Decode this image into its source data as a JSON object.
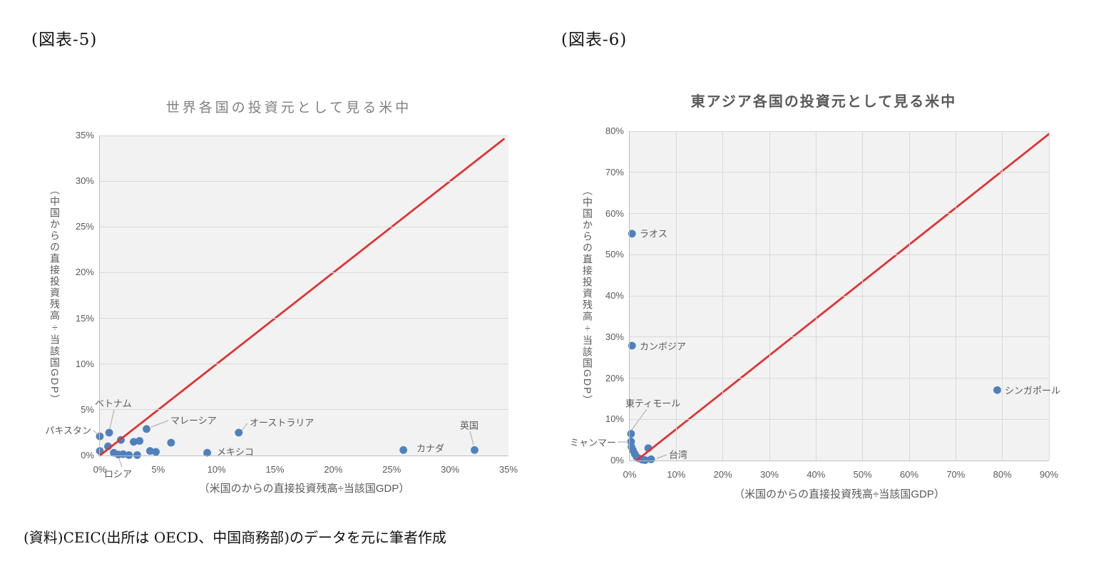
{
  "figures": [
    {
      "tag": "(図表-5)"
    },
    {
      "tag": "(図表-6)"
    }
  ],
  "source_note": "(資料)CEIC(出所は OECD、中国商務部)のデータを元に筆者作成",
  "colors": {
    "plot_background": "#f2f2f2",
    "gridline": "#d9d9d9",
    "axis_line": "#bfbfbf",
    "tick_text": "#595959",
    "point_blue": "#4f81bd",
    "reference_red": "#e03232",
    "connector_gray": "#a6a6a6"
  },
  "chart_data": [
    {
      "id": "world",
      "type": "scatter",
      "title": "世界各国の投資元として見る米中",
      "xlabel": "（米国のからの直接投資残高÷当該国GDP）",
      "ylabel": "（中国からの直接投資残高÷当該国GDP）",
      "xlim": [
        0,
        35
      ],
      "ylim": [
        0,
        35
      ],
      "x_tick_step": 5,
      "y_tick_step": 5,
      "x_ticks": [
        "0%",
        "5%",
        "10%",
        "15%",
        "20%",
        "25%",
        "30%",
        "35%"
      ],
      "y_ticks": [
        "0%",
        "5%",
        "10%",
        "15%",
        "20%",
        "25%",
        "30%",
        "35%"
      ],
      "grid": "horizontal-only",
      "legend": "none",
      "point_color": "#4f81bd",
      "reference_line": {
        "color": "#e03232",
        "from": [
          0,
          0
        ],
        "to": [
          34.6,
          34.6
        ]
      },
      "points": [
        {
          "x": 0.0,
          "y": 2.1,
          "label": "パキスタン"
        },
        {
          "x": 0.8,
          "y": 2.5,
          "label": "ベトナム"
        },
        {
          "x": 0.0,
          "y": 0.5
        },
        {
          "x": 0.7,
          "y": 1.0
        },
        {
          "x": 1.8,
          "y": 1.7
        },
        {
          "x": 2.9,
          "y": 1.5
        },
        {
          "x": 3.4,
          "y": 1.6
        },
        {
          "x": 4.0,
          "y": 2.9,
          "label": "マレーシア"
        },
        {
          "x": 1.2,
          "y": 0.3
        },
        {
          "x": 1.6,
          "y": 0.1,
          "label": "ロシア"
        },
        {
          "x": 2.0,
          "y": 0.15
        },
        {
          "x": 2.5,
          "y": 0.05
        },
        {
          "x": 3.2,
          "y": 0.05
        },
        {
          "x": 4.3,
          "y": 0.5
        },
        {
          "x": 4.8,
          "y": 0.4
        },
        {
          "x": 6.1,
          "y": 1.4
        },
        {
          "x": 9.2,
          "y": 0.3,
          "label": "メキシコ"
        },
        {
          "x": 11.9,
          "y": 2.5,
          "label": "オーストラリア"
        },
        {
          "x": 26.0,
          "y": 0.6,
          "label": "カナダ"
        },
        {
          "x": 32.1,
          "y": 0.6,
          "label": "英国"
        }
      ]
    },
    {
      "id": "east",
      "type": "scatter",
      "title": "東アジア各国の投資元として見る米中",
      "xlabel": "（米国のからの直接投資残高÷当該国GDP）",
      "ylabel": "（中国からの直接投資残高÷当該国GDP）",
      "xlim": [
        0,
        90
      ],
      "ylim": [
        0,
        80
      ],
      "x_tick_step": 10,
      "y_tick_step": 10,
      "x_ticks": [
        "0%",
        "10%",
        "20%",
        "30%",
        "40%",
        "50%",
        "60%",
        "70%",
        "80%",
        "90%"
      ],
      "y_ticks": [
        "0%",
        "10%",
        "20%",
        "30%",
        "40%",
        "50%",
        "60%",
        "70%",
        "80%"
      ],
      "grid": "both",
      "legend": "none",
      "point_color": "#4f81bd",
      "reference_line": {
        "color": "#e03232",
        "from": [
          1.5,
          0
        ],
        "to": [
          90,
          79.3
        ]
      },
      "points": [
        {
          "x": 0.5,
          "y": 55.1,
          "label": "ラオス"
        },
        {
          "x": 0.5,
          "y": 27.9,
          "label": "カンボジア"
        },
        {
          "x": 0.3,
          "y": 6.5,
          "label": "東ティモール"
        },
        {
          "x": 0.3,
          "y": 4.6,
          "label": "ミャンマー"
        },
        {
          "x": 0.4,
          "y": 3.3
        },
        {
          "x": 0.7,
          "y": 2.5
        },
        {
          "x": 1.1,
          "y": 1.6
        },
        {
          "x": 1.5,
          "y": 0.9
        },
        {
          "x": 2.0,
          "y": 0.5
        },
        {
          "x": 2.7,
          "y": 0.2
        },
        {
          "x": 4.0,
          "y": 3.0
        },
        {
          "x": 3.3,
          "y": 0.1
        },
        {
          "x": 4.6,
          "y": 0.3,
          "label": "台湾"
        },
        {
          "x": 78.9,
          "y": 17.1,
          "label": "シンガポール"
        }
      ]
    }
  ]
}
